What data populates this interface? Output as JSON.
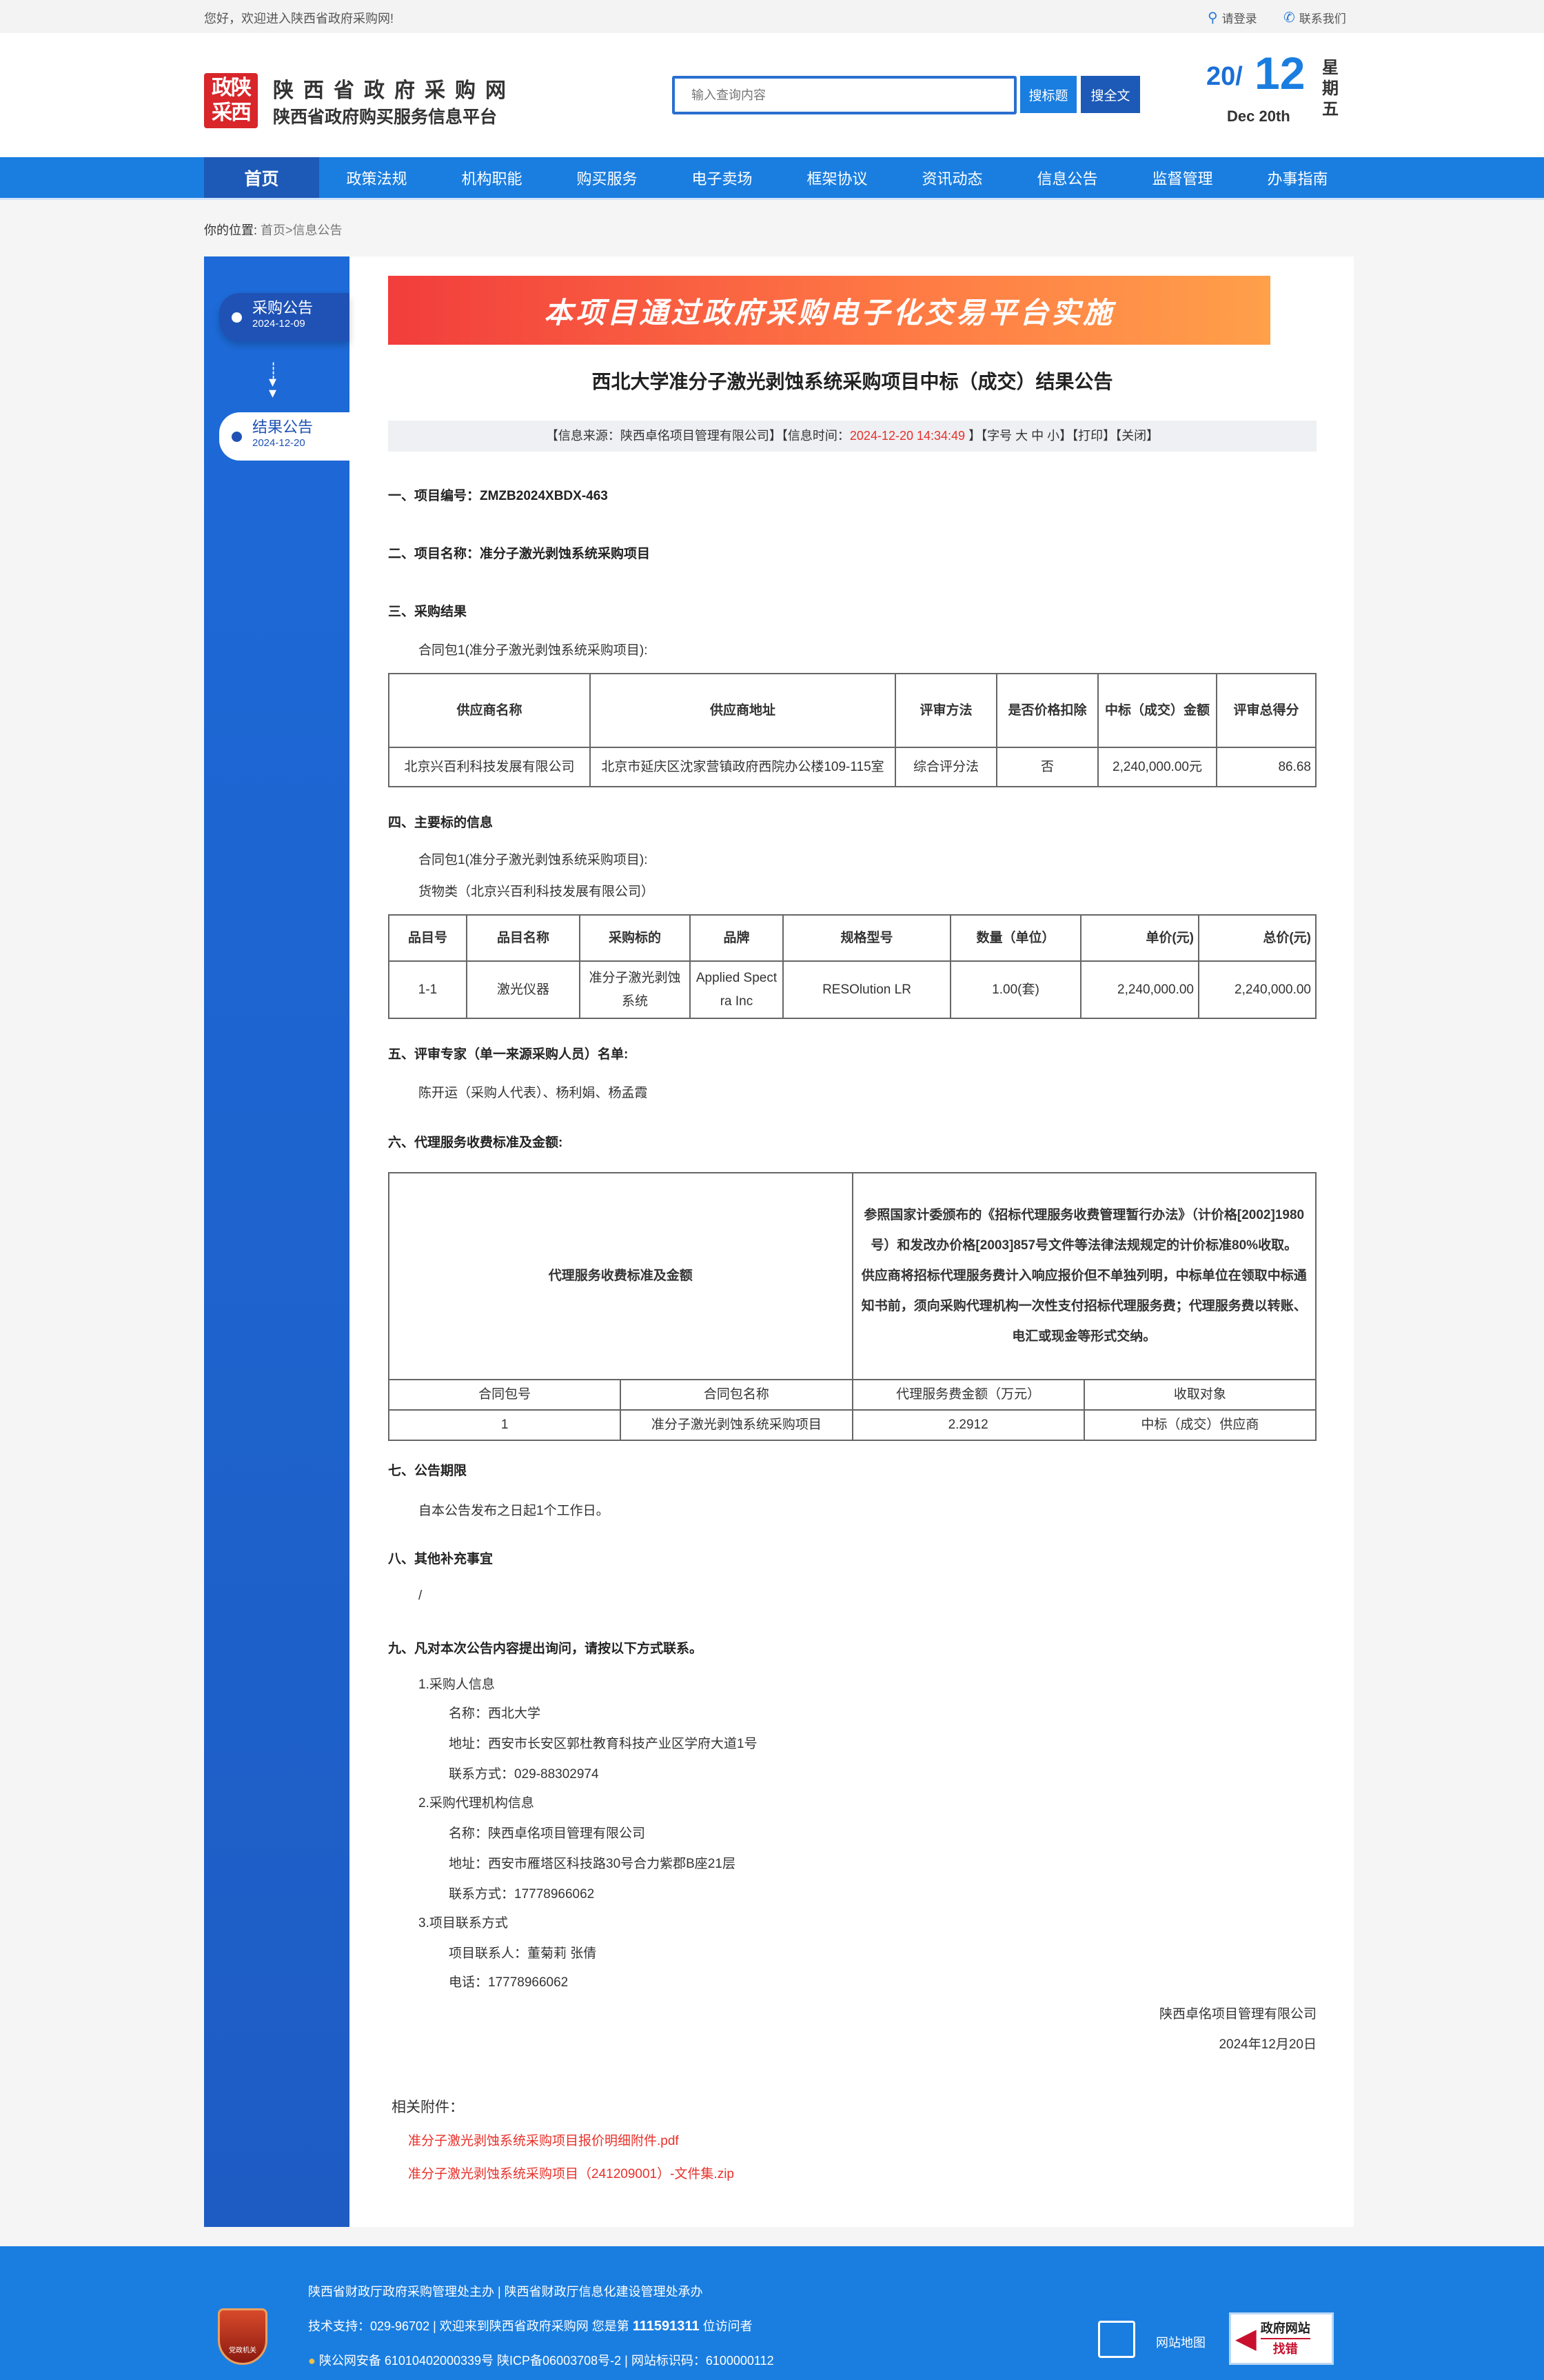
{
  "topbar": {
    "welcome": "您好，欢迎进入陕西省政府采购网!",
    "login": "请登录",
    "contact": "联系我们"
  },
  "header": {
    "logo_text": "政陕采西",
    "site_name": "陕西省政府采购网",
    "site_sub": "陕西省政府购买服务信息平台",
    "search_placeholder": "输入查询内容",
    "search_title_btn": "搜标题",
    "search_full_btn": "搜全文",
    "date_year": "20/",
    "date_day": "12",
    "date_en": "Dec 20th",
    "weekday": "星期五"
  },
  "nav": [
    "首页",
    "政策法规",
    "机构职能",
    "购买服务",
    "电子卖场",
    "框架协议",
    "资讯动态",
    "信息公告",
    "监督管理",
    "办事指南"
  ],
  "breadcrumb": {
    "label": "你的位置:",
    "home": "首页",
    "current": ">信息公告"
  },
  "sidebar": [
    {
      "title": "采购公告",
      "date": "2024-12-09"
    },
    {
      "title": "结果公告",
      "date": "2024-12-20"
    }
  ],
  "banner": "本项目通过政府采购电子化交易平台实施",
  "title": "西北大学准分子激光剥蚀系统采购项目中标（成交）结果公告",
  "info": {
    "source": "【信息来源：陕西卓佲项目管理有限公司】【信息时间：",
    "time": "2024-12-20 14:34:49",
    "rest": " 】【字号 大 中 小】【打印】【关闭】"
  },
  "sections": {
    "s1": "一、项目编号：ZMZB2024XBDX-463",
    "s2": "二、项目名称：准分子激光剥蚀系统采购项目",
    "s3": "三、采购结果",
    "s3_pkg": "合同包1(准分子激光剥蚀系统采购项目):",
    "s4": "四、主要标的信息",
    "s4_pkg": "合同包1(准分子激光剥蚀系统采购项目):",
    "s4_type": "货物类（北京兴百利科技发展有限公司）",
    "s5": "五、评审专家（单一来源采购人员）名单:",
    "s5_text": "陈开运（采购人代表）、杨利娟、杨孟霞",
    "s6": "六、代理服务收费标准及金额:",
    "s7": "七、公告期限",
    "s7_text": "自本公告发布之日起1个工作日。",
    "s8": "八、其他补充事宜",
    "s8_text": "/",
    "s9": "九、凡对本次公告内容提出询问，请按以下方式联系。"
  },
  "result_table": {
    "headers": [
      "供应商名称",
      "供应商地址",
      "评审方法",
      "是否价格扣除",
      "中标（成交）金额",
      "评审总得分"
    ],
    "rows": [
      [
        "北京兴百利科技发展有限公司",
        "北京市延庆区沈家营镇政府西院办公楼109-115室",
        "综合评分法",
        "否",
        "2,240,000.00元",
        "86.68"
      ]
    ]
  },
  "item_table": {
    "headers": [
      "品目号",
      "品目名称",
      "采购标的",
      "品牌",
      "规格型号",
      "数量（单位）",
      "单价(元)",
      "总价(元)"
    ],
    "rows": [
      [
        "1-1",
        "激光仪器",
        "准分子激光剥蚀系统",
        "Applied Spectra Inc",
        "RESOlution LR",
        "1.00(套)",
        "2,240,000.00",
        "2,240,000.00"
      ]
    ]
  },
  "fee_table": {
    "label": "代理服务收费标准及金额",
    "desc1": "参照国家计委颁布的《招标代理服务收费管理暂行办法》（计价格[2002]1980号）和发改办价格[2003]857号文件等法律法规规定的计价标准80%收取。",
    "desc2": "供应商将招标代理服务费计入响应报价但不单独列明，中标单位在领取中标通知书前，须向采购代理机构一次性支付招标代理服务费；代理服务费以转账、电汇或现金等形式交纳。",
    "headers": [
      "合同包号",
      "合同包名称",
      "代理服务费金额（万元）",
      "收取对象"
    ],
    "rows": [
      [
        "1",
        "准分子激光剥蚀系统采购项目",
        "2.2912",
        "中标（成交）供应商"
      ]
    ]
  },
  "contacts": {
    "buyer_h": "1.采购人信息",
    "buyer_name": "名称：西北大学",
    "buyer_addr": "地址：西安市长安区郭杜教育科技产业区学府大道1号",
    "buyer_tel": "联系方式：029-88302974",
    "agent_h": "2.采购代理机构信息",
    "agent_name": "名称：陕西卓佲项目管理有限公司",
    "agent_addr": "地址：西安市雁塔区科技路30号合力紫郡B座21层",
    "agent_tel": "联系方式：17778966062",
    "proj_h": "3.项目联系方式",
    "proj_person": "项目联系人：董菊莉 张倩",
    "proj_tel": "电话：17778966062"
  },
  "signature": {
    "org": "陕西卓佲项目管理有限公司",
    "date": "2024年12月20日"
  },
  "attachments": {
    "label": "相关附件：",
    "files": [
      "准分子激光剥蚀系统采购项目报价明细附件.pdf",
      "准分子激光剥蚀系统采购项目（241209001）-文件集.zip"
    ]
  },
  "footer": {
    "line1": "陕西省财政厅政府采购管理处主办 | 陕西省财政厅信息化建设管理处承办",
    "line2a": "技术支持：029-96702 | 欢迎来到陕西省政府采购网 您是第 ",
    "visitors": "111591311",
    "line2b": " 位访问者",
    "line3": "陕公网安备 61010402000339号   陕ICP备06003708号-2  |  网站标识码：6100000112",
    "emblem_text": "党政机关",
    "sitemap": "网站地图",
    "report_top": "政府网站",
    "report_bottom": "找错"
  },
  "colors": {
    "primary": "#1a7ee0",
    "nav_active": "#1d59b6",
    "accent_red": "#e8302a"
  }
}
